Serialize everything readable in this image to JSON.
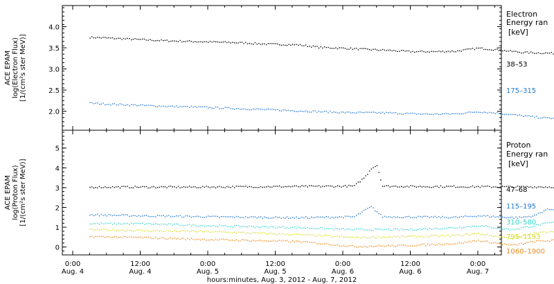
{
  "chart_data": [
    {
      "type": "scatter",
      "panel": "electron",
      "ylabel_lines": [
        "ACE EPAM",
        "log(Electron Flux)",
        "[1/(cm²s ster MeV)]"
      ],
      "ylim": [
        1.55,
        4.5
      ],
      "yticks": [
        2.0,
        2.5,
        3.0,
        3.5,
        4.0
      ],
      "ytick_labels": [
        "2.0",
        "2.5",
        "3.0",
        "3.5",
        "4.0"
      ],
      "legend_title": [
        "Electron",
        "Energy ran",
        "[keV]"
      ],
      "series": [
        {
          "name": "38–53",
          "color": "#000000",
          "points": [
            [
              3.0,
              3.76
            ],
            [
              8,
              3.73
            ],
            [
              16,
              3.68
            ],
            [
              24,
              3.65
            ],
            [
              30,
              3.63
            ],
            [
              34,
              3.6
            ],
            [
              40,
              3.58
            ],
            [
              44,
              3.52
            ],
            [
              48,
              3.5
            ],
            [
              56,
              3.45
            ],
            [
              60,
              3.42
            ],
            [
              64,
              3.42
            ],
            [
              68,
              3.43
            ],
            [
              72,
              3.5
            ],
            [
              74,
              3.48
            ],
            [
              80,
              3.4
            ],
            [
              86,
              3.38
            ],
            [
              92,
              3.33
            ],
            [
              98,
              3.3
            ],
            [
              105.6,
              3.28
            ]
          ]
        },
        {
          "name": "175–315",
          "color": "#1f78d2",
          "points": [
            [
              3.0,
              2.2
            ],
            [
              8,
              2.17
            ],
            [
              16,
              2.13
            ],
            [
              24,
              2.1
            ],
            [
              30,
              2.07
            ],
            [
              34,
              2.05
            ],
            [
              40,
              2.02
            ],
            [
              44,
              2.0
            ],
            [
              48,
              1.98
            ],
            [
              56,
              1.97
            ],
            [
              60,
              1.95
            ],
            [
              64,
              1.94
            ],
            [
              68,
              1.95
            ],
            [
              72,
              2.0
            ],
            [
              75,
              1.97
            ],
            [
              80,
              1.9
            ],
            [
              84,
              1.85
            ],
            [
              90,
              1.83
            ],
            [
              98,
              1.82
            ],
            [
              105.6,
              1.8
            ]
          ]
        }
      ]
    },
    {
      "type": "scatter",
      "panel": "proton",
      "ylabel_lines": [
        "ACE EPAM",
        "log(Proton Flux)",
        "[1/(cm²s ster MeV)]"
      ],
      "ylim": [
        -0.4,
        5.9
      ],
      "yticks": [
        0,
        1,
        2,
        3,
        4,
        5
      ],
      "ytick_labels": [
        "0",
        "1",
        "2",
        "3",
        "4",
        "5"
      ],
      "legend_title": [
        "Proton",
        "Energy ran",
        "[keV]"
      ],
      "series": [
        {
          "name": "47–68",
          "color": "#000000",
          "points": [
            [
              3.0,
              3.05
            ],
            [
              20,
              3.05
            ],
            [
              40,
              3.08
            ],
            [
              50,
              3.1
            ],
            [
              52,
              3.6
            ],
            [
              53,
              4.0
            ],
            [
              54,
              4.15
            ],
            [
              55,
              3.1
            ],
            [
              60,
              3.08
            ],
            [
              80,
              3.06
            ],
            [
              105.6,
              3.05
            ]
          ]
        },
        {
          "name": "115–195",
          "color": "#1f78d2",
          "points": [
            [
              3.0,
              1.65
            ],
            [
              12,
              1.6
            ],
            [
              24,
              1.55
            ],
            [
              40,
              1.5
            ],
            [
              50,
              1.55
            ],
            [
              52,
              1.9
            ],
            [
              53,
              2.05
            ],
            [
              55,
              1.55
            ],
            [
              68,
              1.52
            ],
            [
              72,
              1.6
            ],
            [
              79,
              1.5
            ],
            [
              82,
              1.6
            ],
            [
              84,
              1.9
            ],
            [
              88,
              2.0
            ],
            [
              92,
              1.9
            ],
            [
              105.6,
              1.88
            ]
          ]
        },
        {
          "name": "310–580",
          "color": "#33d4cc",
          "points": [
            [
              3.0,
              1.2
            ],
            [
              12,
              1.2
            ],
            [
              24,
              1.1
            ],
            [
              40,
              1.0
            ],
            [
              50,
              0.9
            ],
            [
              60,
              0.9
            ],
            [
              68,
              1.0
            ],
            [
              72,
              1.1
            ],
            [
              78,
              0.9
            ],
            [
              82,
              1.1
            ],
            [
              88,
              1.4
            ],
            [
              94,
              1.3
            ],
            [
              105.6,
              1.2
            ]
          ]
        },
        {
          "name": "795–1193",
          "color": "#d4dc20",
          "points": [
            [
              3.0,
              0.9
            ],
            [
              12,
              0.85
            ],
            [
              24,
              0.8
            ],
            [
              40,
              0.65
            ],
            [
              50,
              0.5
            ],
            [
              60,
              0.55
            ],
            [
              68,
              0.6
            ],
            [
              72,
              0.7
            ],
            [
              78,
              0.45
            ],
            [
              82,
              0.7
            ],
            [
              88,
              0.95
            ],
            [
              94,
              0.8
            ],
            [
              105.6,
              0.75
            ]
          ]
        },
        {
          "name": "1060–1900",
          "color": "#f08a1c",
          "points": [
            [
              3.0,
              0.55
            ],
            [
              12,
              0.5
            ],
            [
              24,
              0.4
            ],
            [
              40,
              0.3
            ],
            [
              50,
              0.05
            ],
            [
              60,
              0.1
            ],
            [
              68,
              0.2
            ],
            [
              72,
              0.35
            ],
            [
              78,
              0.1
            ],
            [
              82,
              0.3
            ],
            [
              88,
              0.4
            ],
            [
              94,
              0.25
            ],
            [
              105.6,
              0.2
            ]
          ]
        }
      ]
    }
  ],
  "x_axis": {
    "xlim": [
      -1,
      112
    ],
    "ticks": [
      {
        "hour": 0,
        "time": "0:00",
        "date": "Aug. 4"
      },
      {
        "hour": 12,
        "time": "12:00",
        "date": "Aug. 4"
      },
      {
        "hour": 24,
        "time": "0:00",
        "date": "Aug. 5"
      },
      {
        "hour": 36,
        "time": "12:00",
        "date": "Aug. 5"
      },
      {
        "hour": 48,
        "time": "0:00",
        "date": "Aug. 6"
      },
      {
        "hour": 60,
        "time": "12:00",
        "date": "Aug. 6"
      },
      {
        "hour": 72,
        "time": "0:00",
        "date": "Aug. 7"
      }
    ],
    "minor_every_hours": 3,
    "xlabel": "hours:minutes, Aug.  3, 2012 - Aug.  7, 2012"
  }
}
